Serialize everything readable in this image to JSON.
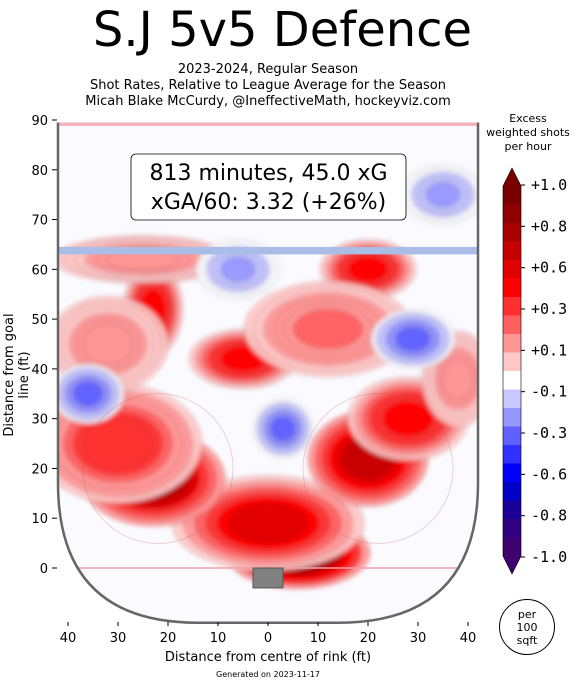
{
  "title": "S.J 5v5 Defence",
  "subtitle_lines": [
    "2023-2024, Regular Season",
    "Shot Rates, Relative to League Average for the Season",
    "Micah Blake McCurdy, @IneffectiveMath, hockeyviz.com"
  ],
  "info_box": {
    "line1": "813 minutes, 45.0 xG",
    "line2": "xGA/60: 3.32 (+26%)"
  },
  "footer": "Generated on 2023-11-17",
  "colorbar": {
    "title_lines": [
      "Excess",
      "weighted shots",
      "per hour"
    ],
    "tick_labels": [
      "+1.0",
      "+0.8",
      "+0.6",
      "+0.3",
      "+0.1",
      "-0.1",
      "-0.3",
      "-0.6",
      "-0.8",
      "-1.0"
    ],
    "colors": [
      "#7a0000",
      "#8f0000",
      "#a80000",
      "#c40000",
      "#e00000",
      "#ff0000",
      "#ff3030",
      "#ff6060",
      "#ff9696",
      "#ffc8c8",
      "#ffffff",
      "#c8c8ff",
      "#9696ff",
      "#6060ff",
      "#3030ff",
      "#0000ff",
      "#0000c8",
      "#1a0096",
      "#300080",
      "#3f0070"
    ]
  },
  "per_unit": [
    "per",
    "100",
    "sqft"
  ],
  "chart_data": {
    "type": "heatmap",
    "title": "S.J 5v5 Defence",
    "xlabel": "Distance from centre of rink (ft)",
    "ylabel": "Distance from goal line (ft)",
    "xlim": [
      -42,
      42
    ],
    "ylim": [
      -11,
      90
    ],
    "x_ticks": [
      {
        "v": -40,
        "label": "40"
      },
      {
        "v": -30,
        "label": "30"
      },
      {
        "v": -20,
        "label": "20"
      },
      {
        "v": -10,
        "label": "10"
      },
      {
        "v": 0,
        "label": "0"
      },
      {
        "v": 10,
        "label": "10"
      },
      {
        "v": 20,
        "label": "20"
      },
      {
        "v": 30,
        "label": "30"
      },
      {
        "v": 40,
        "label": "40"
      }
    ],
    "y_ticks": [
      0,
      10,
      20,
      30,
      40,
      50,
      60,
      70,
      80,
      90
    ],
    "hotspots": [
      {
        "x": 6,
        "y": 3,
        "value": 1.0,
        "rx": 12,
        "ry": 6
      },
      {
        "x": 0,
        "y": 9,
        "value": 0.6,
        "rx": 16,
        "ry": 8
      },
      {
        "x": -23,
        "y": 18,
        "value": 0.8,
        "rx": 12,
        "ry": 8
      },
      {
        "x": -30,
        "y": 25,
        "value": 0.4,
        "rx": 14,
        "ry": 10
      },
      {
        "x": 20,
        "y": 22,
        "value": 0.7,
        "rx": 10,
        "ry": 8
      },
      {
        "x": 28,
        "y": 30,
        "value": 0.5,
        "rx": 10,
        "ry": 7
      },
      {
        "x": -23,
        "y": 52,
        "value": 0.5,
        "rx": 5,
        "ry": 8
      },
      {
        "x": -5,
        "y": 42,
        "value": 0.5,
        "rx": 9,
        "ry": 5
      },
      {
        "x": -32,
        "y": 45,
        "value": 0.2,
        "rx": 10,
        "ry": 8
      },
      {
        "x": 20,
        "y": 60,
        "value": 0.5,
        "rx": 8,
        "ry": 5
      },
      {
        "x": 12,
        "y": 48,
        "value": 0.25,
        "rx": 14,
        "ry": 8
      },
      {
        "x": -25,
        "y": 62,
        "value": 0.2,
        "rx": 15,
        "ry": 4
      },
      {
        "x": 38,
        "y": 38,
        "value": 0.2,
        "rx": 6,
        "ry": 8
      },
      {
        "x": 3,
        "y": 28,
        "value": -0.35,
        "rx": 5,
        "ry": 5
      },
      {
        "x": -36,
        "y": 35,
        "value": -0.35,
        "rx": 6,
        "ry": 5
      },
      {
        "x": 29,
        "y": 46,
        "value": -0.35,
        "rx": 7,
        "ry": 5
      },
      {
        "x": -6,
        "y": 60,
        "value": -0.25,
        "rx": 7,
        "ry": 5
      },
      {
        "x": 35,
        "y": 75,
        "value": -0.25,
        "rx": 7,
        "ry": 5
      }
    ]
  }
}
